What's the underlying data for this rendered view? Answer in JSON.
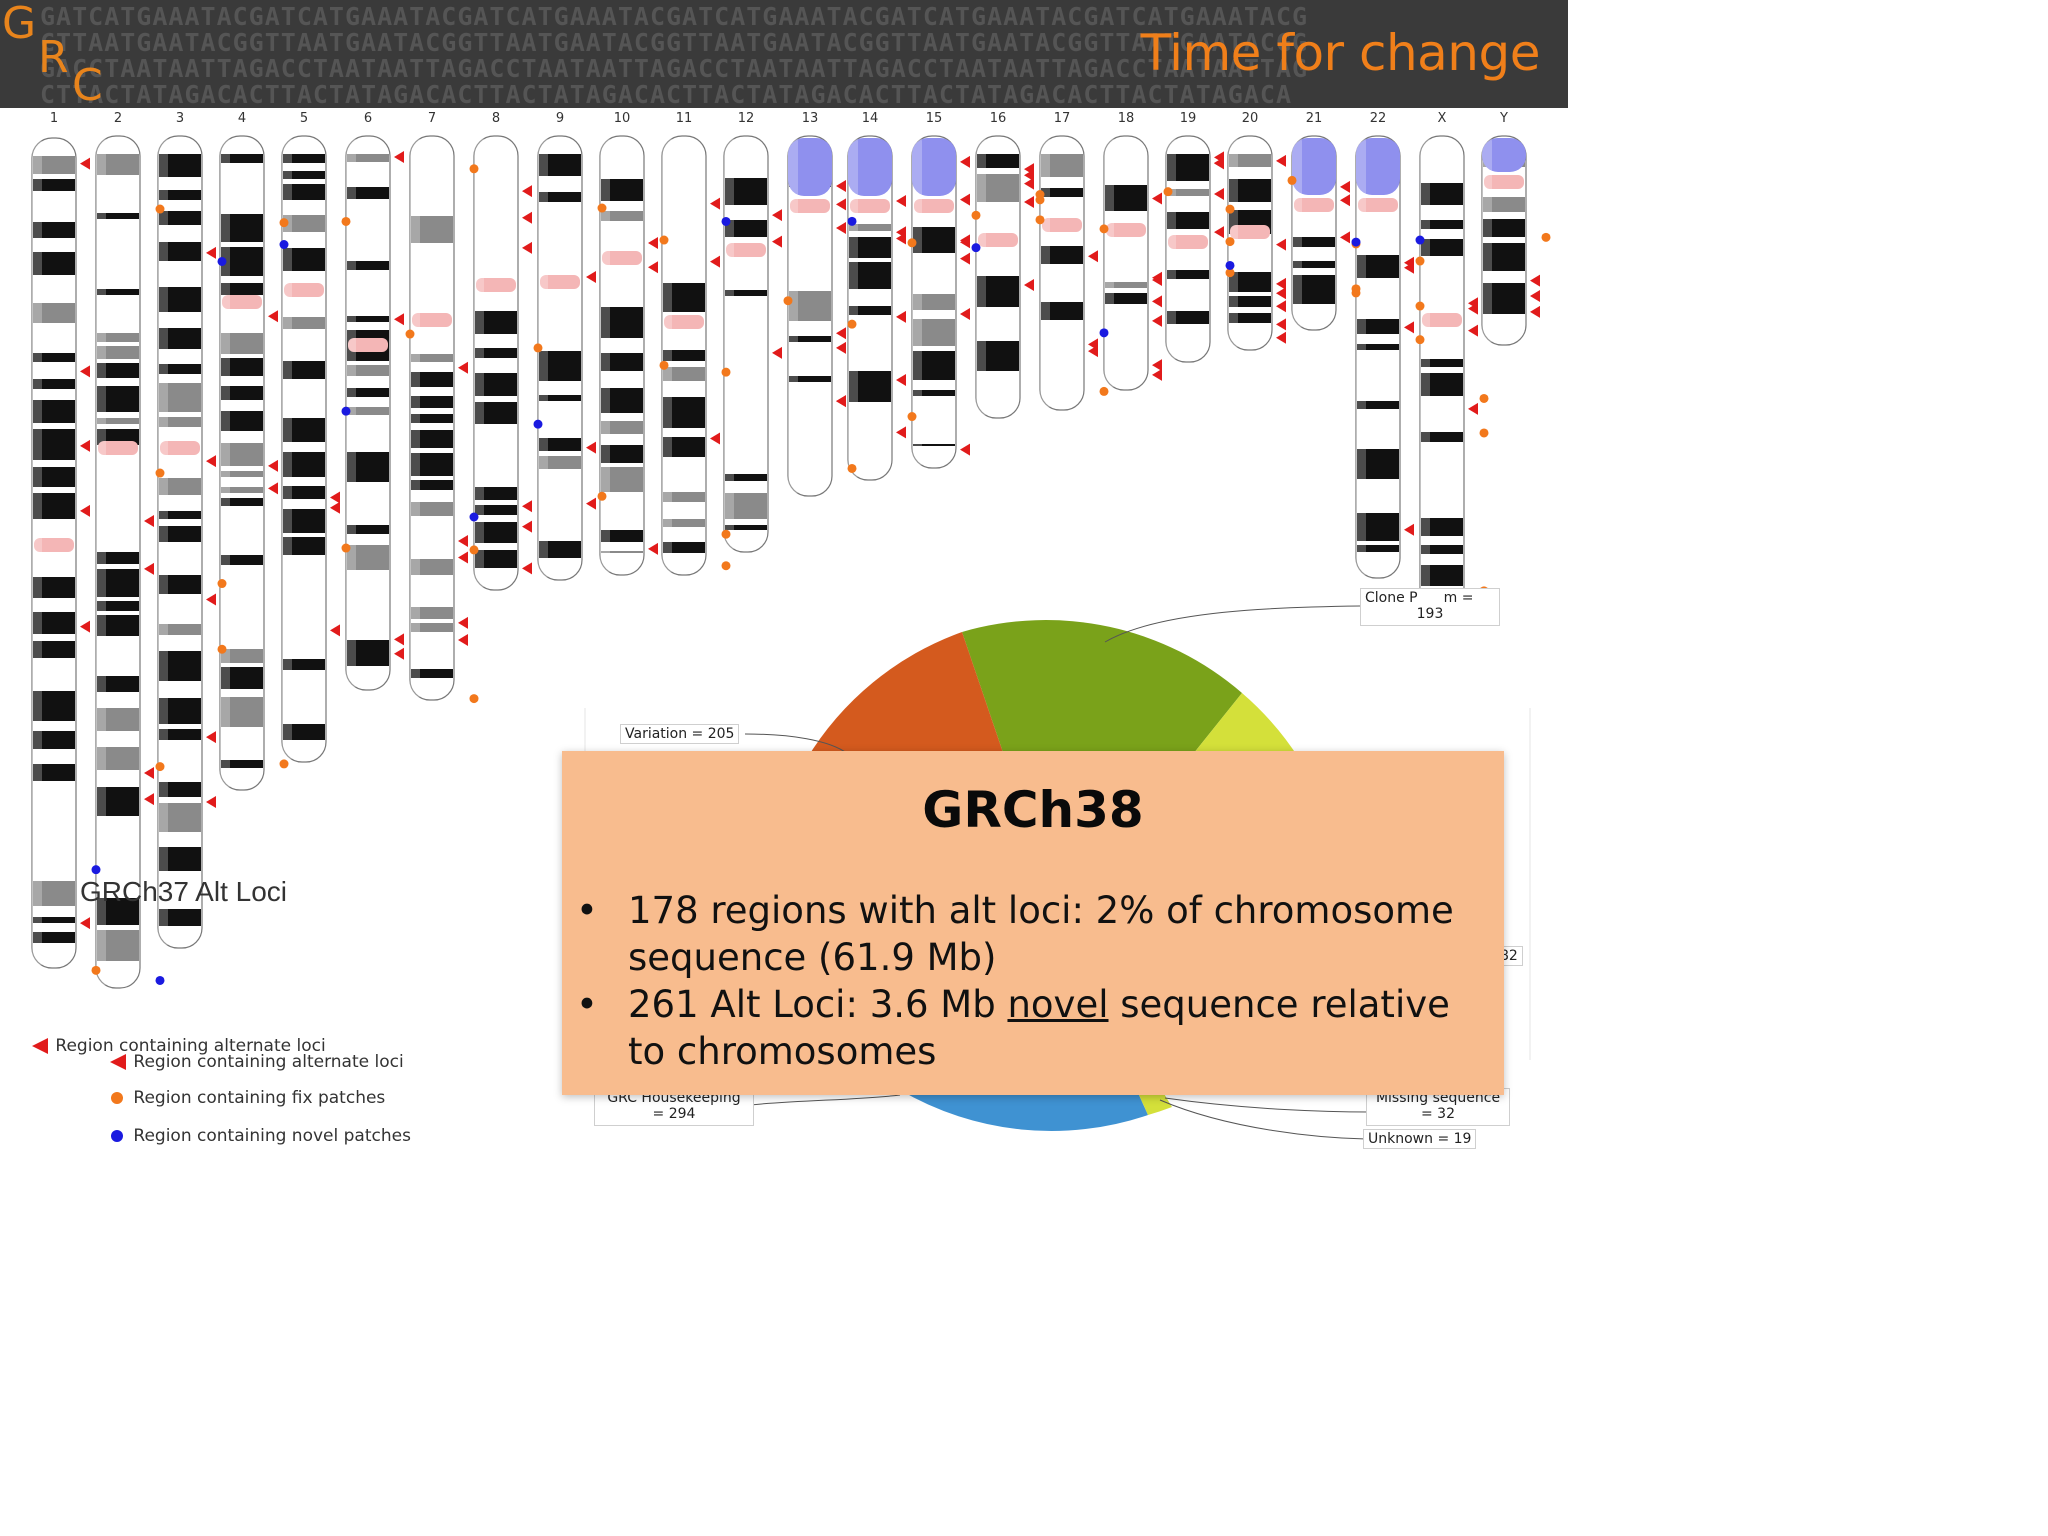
{
  "header": {
    "logo_letters": [
      "G",
      "R",
      "C"
    ],
    "dna_rows": [
      "GATCATGAAATACGATCATGAAATACGATCATGAAATACGATCATGAAATACGATCATGAAATACGATCATGAAATACG",
      "CTTAATGAATACGGTTAATGAATACGGTTAATGAATACGGTTAATGAATACGGTTAATGAATACGGTTAATGAATACGG",
      "GACCTAATAATTAGACCTAATAATTAGACCTAATAATTAGACCTAATAATTAGACCTAATAATTAGACCTAATAATTAG",
      "CTTACTATAGACACTTACTATAGACACTTACTATAGACACTTACTATAGACACTTACTATAGACACTTACTATAGACA"
    ],
    "title": "Time for change",
    "title_color": "#f07f1a",
    "background_color": "#3a3a3a"
  },
  "ideogram": {
    "chromosome_labels": [
      "1",
      "2",
      "3",
      "4",
      "5",
      "6",
      "7",
      "8",
      "9",
      "10",
      "11",
      "12",
      "13",
      "14",
      "15",
      "16",
      "17",
      "18",
      "19",
      "20",
      "21",
      "22",
      "X",
      "Y"
    ],
    "label_text": "GRCh37 Alt Loci",
    "colors": {
      "band_dark": "#111111",
      "band_mid": "#8a8a8a",
      "centromere": "#f4b6b6",
      "acrocentric": "#8f90ee",
      "alt_loci_marker": "#e11b1b",
      "fix_patch_marker": "#f2781c",
      "novel_patch_marker": "#1a1ae0"
    }
  },
  "legend": {
    "items": [
      {
        "label": "Region containing alternate loci",
        "symbol": "red-triangle",
        "color": "#e11b1b"
      },
      {
        "label": "Region containing alternate loci",
        "symbol": "red-triangle",
        "color": "#e11b1b"
      },
      {
        "label": "Region containing fix patches",
        "symbol": "orange-circle",
        "color": "#f2781c"
      },
      {
        "label": "Region containing novel patches",
        "symbol": "blue-circle",
        "color": "#1a1ae0"
      }
    ]
  },
  "pie": {
    "slice_colors": {
      "clone_problem": "#7aa21a",
      "variation": "#d45a1e",
      "yellow": "#d4e03a",
      "blue": "#3f92d2"
    },
    "labels": {
      "clone_problem_top": "Clone P",
      "clone_problem_suffix": "m =",
      "clone_problem_value": "193",
      "variation": "Variation = 205",
      "right_partial": "82",
      "grc_housekeeping_top": "GRC Housekeeping",
      "grc_housekeeping_value": "= 294",
      "missing_sequence_top": "Missing sequence",
      "missing_sequence_value": "= 32",
      "unknown": "Unknown = 19"
    }
  },
  "overlay": {
    "title": "GRCh38",
    "bullet_symbol": "•",
    "bullet1": "178 regions with alt loci: 2% of chromosome sequence (61.9 Mb)",
    "bullet2_a": "261 Alt Loci: 3.6 Mb ",
    "bullet2_underlined": "novel",
    "bullet2_b": " sequence relative to chromosomes",
    "background_color": "#f8bc8e"
  }
}
